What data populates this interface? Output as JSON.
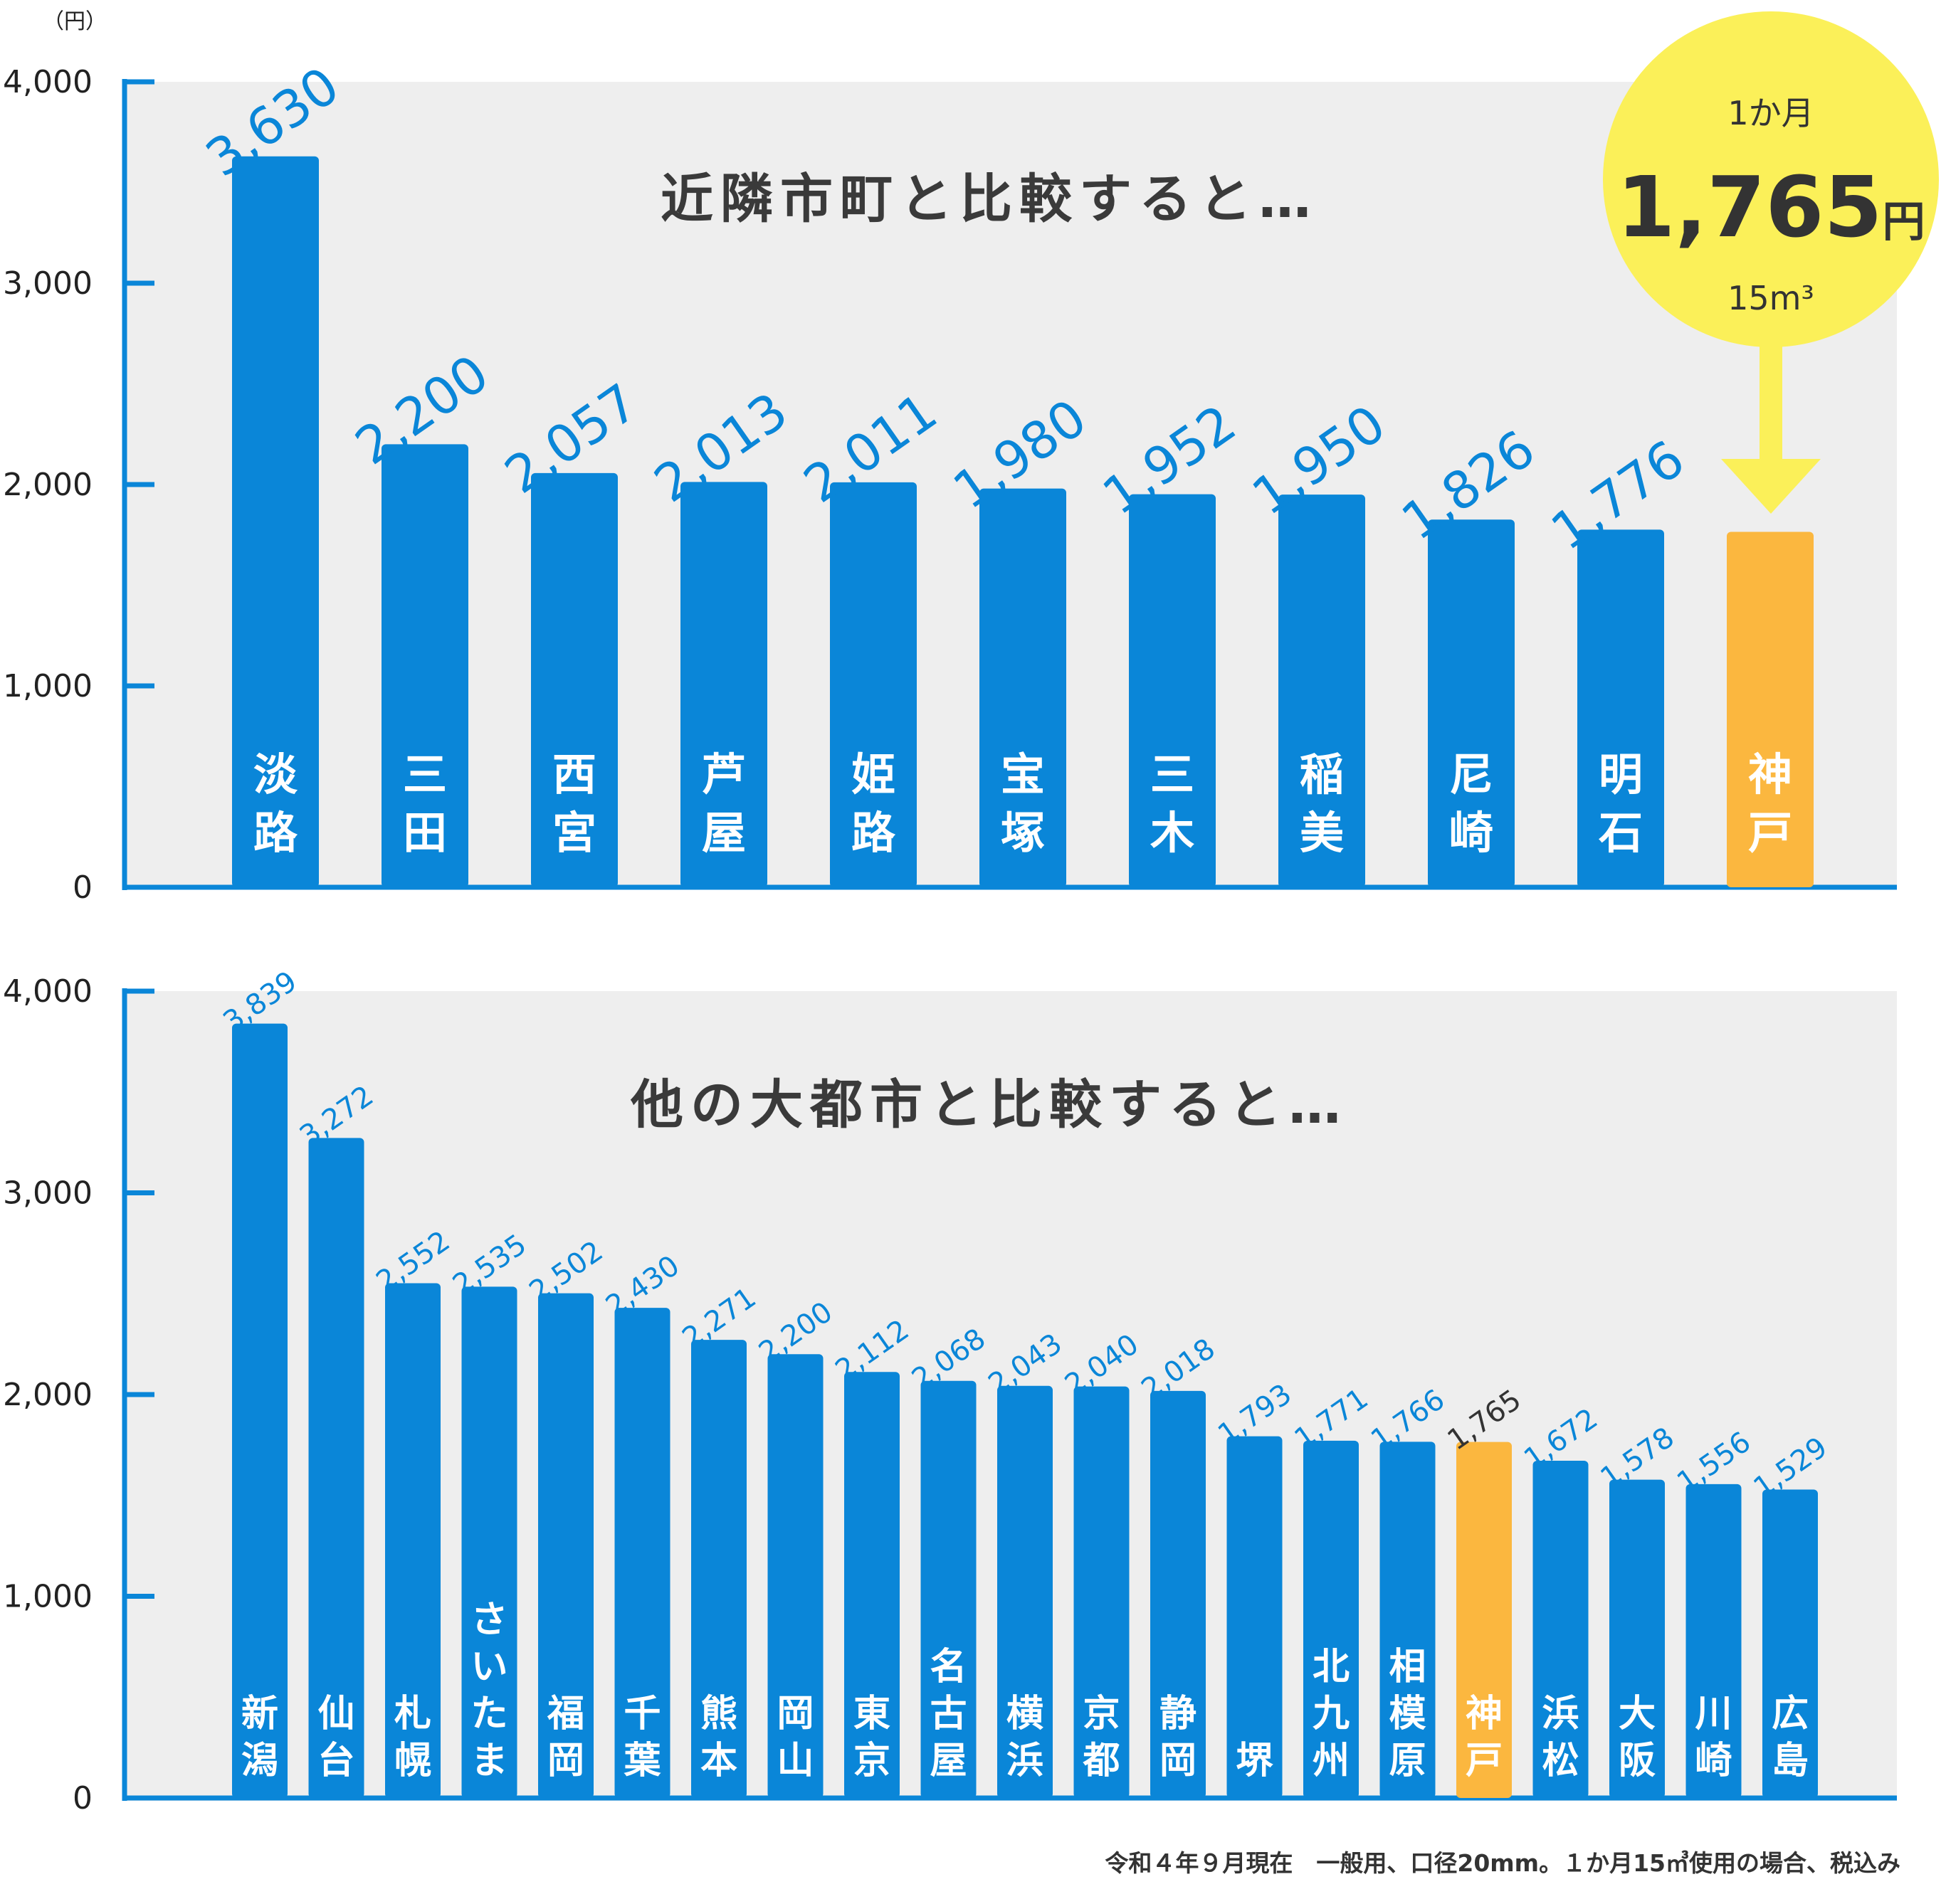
{
  "chart_data": [
    {
      "type": "bar",
      "title": "近隣市町と比較すると…",
      "unit": "（円）",
      "ylim": [
        0,
        4000
      ],
      "yticks": [
        "0",
        "1,000",
        "2,000",
        "3,000",
        "4,000"
      ],
      "categories": [
        "淡路",
        "三田",
        "西宮",
        "芦屋",
        "姫路",
        "宝塚",
        "三木",
        "稲美",
        "尼崎",
        "明石",
        "神戸"
      ],
      "values": [
        3630,
        2200,
        2057,
        2013,
        2011,
        1980,
        1952,
        1950,
        1826,
        1776,
        1765
      ],
      "value_labels": [
        "3,630",
        "2,200",
        "2,057",
        "2,013",
        "2,011",
        "1,980",
        "1,952",
        "1,950",
        "1,826",
        "1,776",
        ""
      ],
      "highlight": "神戸",
      "grid": false,
      "callout": {
        "line1": "1か月",
        "amount": "1,765",
        "amount_unit": "円",
        "volume": "15m³"
      }
    },
    {
      "type": "bar",
      "title": "他の大都市と比較すると…",
      "ylim": [
        0,
        4000
      ],
      "yticks": [
        "0",
        "1,000",
        "2,000",
        "3,000",
        "4,000"
      ],
      "categories": [
        "新潟",
        "仙台",
        "札幌",
        "さいたま",
        "福岡",
        "千葉",
        "熊本",
        "岡山",
        "東京",
        "名古屋",
        "横浜",
        "京都",
        "静岡",
        "堺",
        "北九州",
        "相模原",
        "神戸",
        "浜松",
        "大阪",
        "川崎",
        "広島"
      ],
      "values": [
        3839,
        3272,
        2552,
        2535,
        2502,
        2430,
        2271,
        2200,
        2112,
        2068,
        2043,
        2040,
        2018,
        1793,
        1771,
        1766,
        1765,
        1672,
        1578,
        1556,
        1529
      ],
      "value_labels": [
        "3,839",
        "3,272",
        "2,552",
        "2,535",
        "2,502",
        "2,430",
        "2,271",
        "2,200",
        "2,112",
        "2,068",
        "2,043",
        "2,040",
        "2,018",
        "1,793",
        "1,771",
        "1,766",
        "1,765",
        "1,672",
        "1,578",
        "1,556",
        "1,529"
      ],
      "highlight": "神戸",
      "grid": false
    }
  ],
  "footnote": "令和４年９月現在　一般用、口径20mm。１か月15㎥使用の場合、税込み",
  "colors": {
    "bar": "#0a86d8",
    "highlight": "#fbb73f",
    "axis": "#0a86d8",
    "panel": "#eeeeee",
    "value_label": "#0a86d8",
    "highlight_value_label": "#333333",
    "callout": "#fbf059"
  }
}
